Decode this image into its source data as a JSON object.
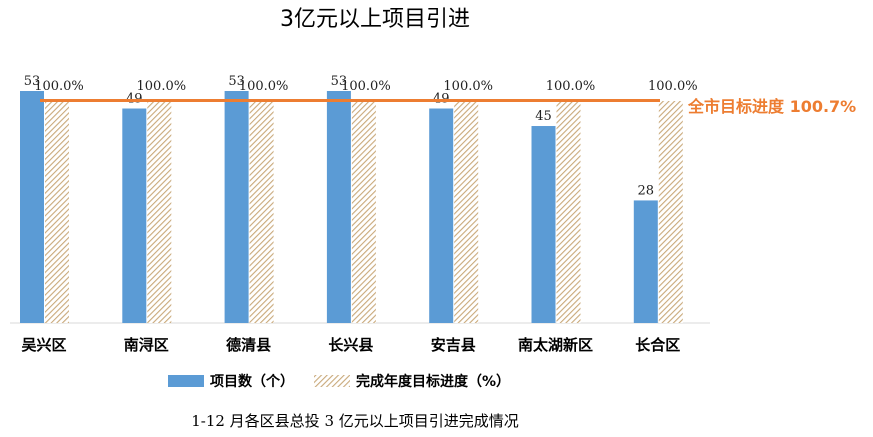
{
  "chart_data": {
    "type": "bar",
    "title": "3亿元以上项目引进",
    "categories": [
      "吴兴区",
      "南浔区",
      "德清县",
      "长兴县",
      "安吉县",
      "南太湖新区",
      "长合区"
    ],
    "series": [
      {
        "name": "项目数（个）",
        "values": [
          53,
          49,
          53,
          53,
          49,
          45,
          28
        ],
        "color": "#5b9bd5"
      },
      {
        "name": "完成年度目标进度（%）",
        "values": [
          100.0,
          100.0,
          100.0,
          100.0,
          100.0,
          100.0,
          100.0
        ],
        "labels": [
          "100.0%",
          "100.0%",
          "100.0%",
          "100.0%",
          "100.0%",
          "100.0%",
          "100.0%"
        ],
        "color": "#c9a97a",
        "pattern": "diagonal-hatch"
      }
    ],
    "reference_line": {
      "label": "全市目标进度 100.7%",
      "value": 100.7,
      "color": "#ed7d31"
    },
    "caption": "1-12 月各区县总投 3 亿元以上项目引进完成情况",
    "legend_position": "bottom",
    "grid": false
  }
}
